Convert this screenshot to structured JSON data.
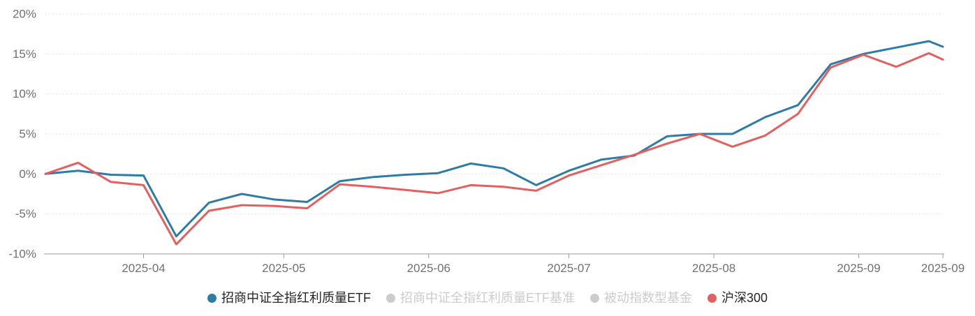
{
  "chart_data": {
    "type": "line",
    "title": "",
    "xlabel": "",
    "ylabel": "",
    "unit": "%",
    "grid": "horizontal-dotted",
    "legend_position": "bottom-center",
    "x": [
      "2025-03-11",
      "2025-03-18",
      "2025-03-25",
      "2025-04-01",
      "2025-04-08",
      "2025-04-15",
      "2025-04-22",
      "2025-04-29",
      "2025-05-06",
      "2025-05-13",
      "2025-05-20",
      "2025-05-27",
      "2025-06-03",
      "2025-06-10",
      "2025-06-17",
      "2025-06-24",
      "2025-07-01",
      "2025-07-08",
      "2025-07-15",
      "2025-07-22",
      "2025-07-29",
      "2025-08-05",
      "2025-08-12",
      "2025-08-19",
      "2025-08-26",
      "2025-09-02",
      "2025-09-09",
      "2025-09-16",
      "2025-09-19"
    ],
    "series": [
      {
        "name": "招商中证全指红利质量ETF",
        "color": "#2e7ba6",
        "active": true,
        "values": [
          0.0,
          0.4,
          -0.1,
          -0.2,
          -7.8,
          -3.6,
          -2.5,
          -3.2,
          -3.5,
          -0.9,
          -0.4,
          -0.1,
          0.1,
          1.3,
          0.7,
          -1.4,
          0.4,
          1.8,
          2.3,
          4.7,
          5.0,
          5.0,
          7.1,
          8.6,
          13.7,
          15.0,
          15.8,
          16.6,
          15.9
        ]
      },
      {
        "name": "招商中证全指红利质量ETF基准",
        "color": "#cccccc",
        "active": false
      },
      {
        "name": "被动指数型基金",
        "color": "#cccccc",
        "active": false
      },
      {
        "name": "沪深300",
        "color": "#e45f5f",
        "active": true,
        "values": [
          0.0,
          1.4,
          -1.0,
          -1.4,
          -8.8,
          -4.6,
          -3.9,
          -4.0,
          -4.3,
          -1.3,
          -1.6,
          -2.0,
          -2.4,
          -1.4,
          -1.6,
          -2.1,
          -0.2,
          1.1,
          2.4,
          3.8,
          5.0,
          3.4,
          4.8,
          7.5,
          13.3,
          14.9,
          13.4,
          15.1,
          14.3
        ]
      }
    ],
    "y_axis": {
      "min": -10,
      "max": 20,
      "ticks": [
        {
          "label": "20%",
          "value": 20
        },
        {
          "label": "15%",
          "value": 15
        },
        {
          "label": "10%",
          "value": 10
        },
        {
          "label": "5%",
          "value": 5
        },
        {
          "label": "0%",
          "value": 0
        },
        {
          "label": "-5%",
          "value": -5
        },
        {
          "label": "-10%",
          "value": -10
        }
      ]
    },
    "x_axis": {
      "ticks": [
        {
          "label": "2025-04",
          "date": "2025-04-01"
        },
        {
          "label": "2025-05",
          "date": "2025-05-01"
        },
        {
          "label": "2025-06",
          "date": "2025-06-01"
        },
        {
          "label": "2025-07",
          "date": "2025-07-01"
        },
        {
          "label": "2025-08",
          "date": "2025-08-01"
        },
        {
          "label": "2025-09",
          "date": "2025-09-01"
        },
        {
          "label": "2025-09",
          "date": "2025-09-19"
        }
      ]
    }
  },
  "style": {
    "inactive_color": "#cccccc",
    "legend_text_color": "#252525",
    "axis_text_color": "#707070",
    "axis_line_color": "#9a9a9a",
    "grid_line_color": "#e3e3e3",
    "background": "#ffffff"
  }
}
